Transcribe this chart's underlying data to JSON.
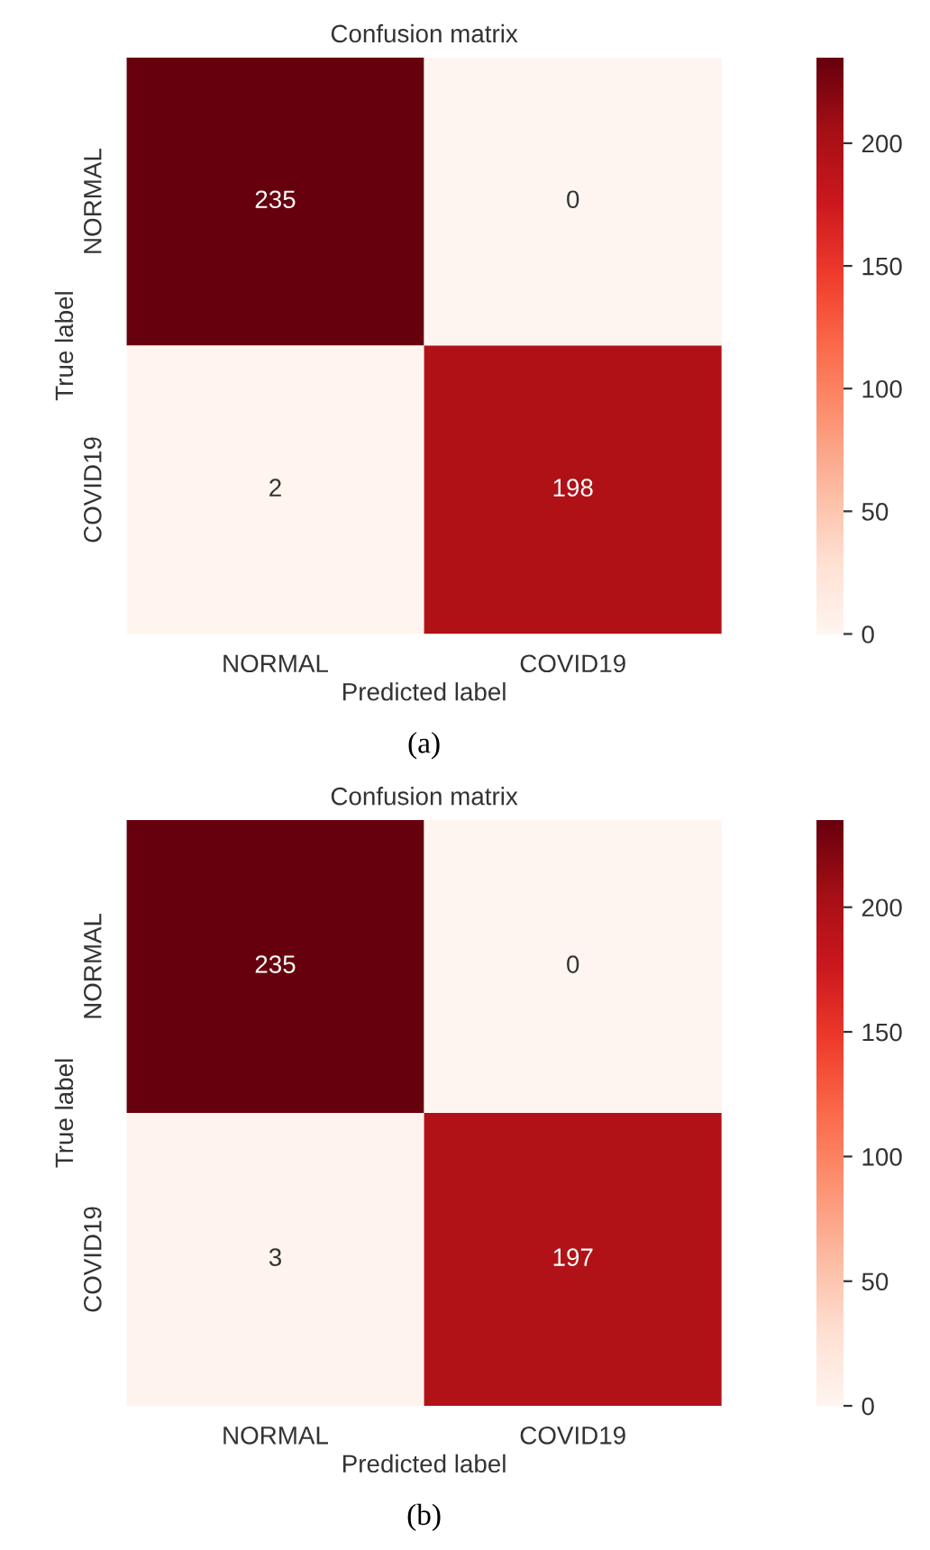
{
  "chart_data": [
    {
      "type": "heatmap",
      "title": "Confusion matrix",
      "xlabel": "Predicted label",
      "ylabel": "True label",
      "categories": [
        "NORMAL",
        "COVID19"
      ],
      "y_categories": [
        "NORMAL",
        "COVID19"
      ],
      "cells": [
        [
          235,
          0
        ],
        [
          2,
          198
        ]
      ],
      "clim": [
        0,
        235
      ],
      "cticks": [
        0,
        50,
        100,
        150,
        200
      ],
      "data_labels": true,
      "annotations": [
        "(a)"
      ]
    },
    {
      "type": "heatmap",
      "title": "Confusion matrix",
      "xlabel": "Predicted label",
      "ylabel": "True label",
      "categories": [
        "NORMAL",
        "COVID19"
      ],
      "y_categories": [
        "NORMAL",
        "COVID19"
      ],
      "cells": [
        [
          235,
          0
        ],
        [
          3,
          197
        ]
      ],
      "clim": [
        0,
        235
      ],
      "cticks": [
        0,
        50,
        100,
        150,
        200
      ],
      "data_labels": true,
      "annotations": [
        "(b)"
      ]
    }
  ]
}
